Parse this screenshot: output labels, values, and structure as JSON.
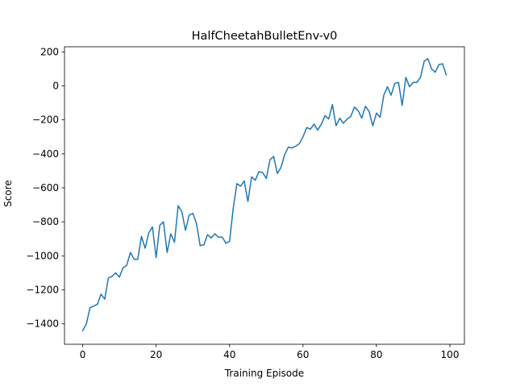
{
  "chart_data": {
    "type": "line",
    "title": "HalfCheetahBulletEnv-v0",
    "xlabel": "Training Episode",
    "ylabel": "Score",
    "xlim": [
      -4.95,
      103.95
    ],
    "ylim": [
      -1520,
      230
    ],
    "xticks": [
      0,
      20,
      40,
      60,
      80,
      100
    ],
    "yticks": [
      -1400,
      -1200,
      -1000,
      -800,
      -600,
      -400,
      -200,
      0,
      200
    ],
    "grid": false,
    "line_color": "#1f77b4",
    "series": [
      {
        "x": [
          0,
          1,
          2,
          3,
          4,
          5,
          6,
          7,
          8,
          9,
          10,
          11,
          12,
          13,
          14,
          15,
          16,
          17,
          18,
          19,
          20,
          21,
          22,
          23,
          24,
          25,
          26,
          27,
          28,
          29,
          30,
          31,
          32,
          33,
          34,
          35,
          36,
          37,
          38,
          39,
          40,
          41,
          42,
          43,
          44,
          45,
          46,
          47,
          48,
          49,
          50,
          51,
          52,
          53,
          54,
          55,
          56,
          57,
          58,
          59,
          60,
          61,
          62,
          63,
          64,
          65,
          66,
          67,
          68,
          69,
          70,
          71,
          72,
          73,
          74,
          75,
          76,
          77,
          78,
          79,
          80,
          81,
          82,
          83,
          84,
          85,
          86,
          87,
          88,
          89,
          90,
          91,
          92,
          93,
          94,
          95,
          96,
          97,
          98,
          99
        ],
        "values": [
          -1440,
          -1400,
          -1305,
          -1295,
          -1285,
          -1225,
          -1255,
          -1130,
          -1120,
          -1100,
          -1125,
          -1070,
          -1055,
          -980,
          -1020,
          -1020,
          -885,
          -955,
          -865,
          -830,
          -1010,
          -820,
          -800,
          -980,
          -870,
          -920,
          -705,
          -740,
          -850,
          -760,
          -750,
          -810,
          -940,
          -935,
          -875,
          -895,
          -870,
          -890,
          -890,
          -925,
          -915,
          -720,
          -575,
          -590,
          -560,
          -680,
          -535,
          -555,
          -505,
          -510,
          -545,
          -435,
          -415,
          -515,
          -480,
          -405,
          -360,
          -365,
          -355,
          -340,
          -300,
          -245,
          -255,
          -225,
          -260,
          -225,
          -175,
          -195,
          -110,
          -235,
          -190,
          -220,
          -195,
          -180,
          -125,
          -145,
          -190,
          -120,
          -150,
          -235,
          -160,
          -185,
          -55,
          -5,
          -55,
          15,
          20,
          -115,
          50,
          -5,
          20,
          20,
          50,
          145,
          160,
          100,
          80,
          125,
          130,
          65
        ]
      }
    ]
  }
}
